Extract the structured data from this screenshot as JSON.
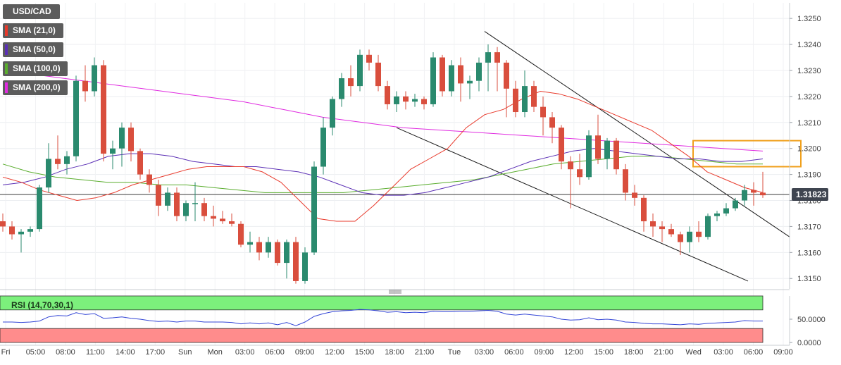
{
  "chart_data": {
    "type": "candlestick",
    "symbol": "USD/CAD",
    "legend": [
      {
        "label": "USD/CAD",
        "color": "#5c5c5c"
      },
      {
        "label": "SMA (21,0)",
        "color": "#e8392b"
      },
      {
        "label": "SMA (50,0)",
        "color": "#5b2fb5"
      },
      {
        "label": "SMA (100,0)",
        "color": "#5aad2e"
      },
      {
        "label": "SMA (200,0)",
        "color": "#e02be0"
      }
    ],
    "colors": {
      "up": "#2a8a6e",
      "down": "#d94e3d",
      "sma21": "#e8392b",
      "sma50": "#5b2fb5",
      "sma100": "#5aad2e",
      "sma200": "#e02be0",
      "rsi": "#3345d6",
      "overbought_fill": "#7cf07c",
      "oversold_fill": "#ff8c8c",
      "highlight_box": "#f0a01c"
    },
    "price_axis": {
      "ticks": [
        "1.3250",
        "1.3240",
        "1.3230",
        "1.3220",
        "1.3210",
        "1.3200",
        "1.3190",
        "1.3180",
        "1.3170",
        "1.3160",
        "1.3150"
      ],
      "ylim": [
        1.3146,
        1.3256
      ]
    },
    "last_price": {
      "value": 1.31823,
      "label": "1.31823"
    },
    "time_axis": {
      "labels": [
        "Fri",
        "05:00",
        "08:00",
        "11:00",
        "14:00",
        "17:00",
        "Sun",
        "Mon",
        "03:00",
        "06:00",
        "09:00",
        "12:00",
        "15:00",
        "18:00",
        "21:00",
        "Tue",
        "03:00",
        "06:00",
        "09:00",
        "12:00",
        "15:00",
        "18:00",
        "21:00",
        "Wed",
        "03:00",
        "06:00",
        "09:00"
      ]
    },
    "candles": [
      [
        1.3172,
        1.3175,
        1.3168,
        1.317
      ],
      [
        1.317,
        1.3172,
        1.3165,
        1.3167
      ],
      [
        1.3167,
        1.3169,
        1.316,
        1.3168
      ],
      [
        1.3168,
        1.317,
        1.3166,
        1.3169
      ],
      [
        1.3169,
        1.3186,
        1.3168,
        1.3185
      ],
      [
        1.3185,
        1.3202,
        1.3183,
        1.3196
      ],
      [
        1.3196,
        1.3205,
        1.3192,
        1.3194
      ],
      [
        1.3194,
        1.3199,
        1.319,
        1.3197
      ],
      [
        1.3197,
        1.3228,
        1.3195,
        1.3226
      ],
      [
        1.3226,
        1.3232,
        1.3218,
        1.3222
      ],
      [
        1.3222,
        1.3235,
        1.322,
        1.3232
      ],
      [
        1.3232,
        1.3234,
        1.3195,
        1.3198
      ],
      [
        1.3198,
        1.3203,
        1.3192,
        1.32
      ],
      [
        1.32,
        1.321,
        1.3193,
        1.3208
      ],
      [
        1.3208,
        1.321,
        1.3195,
        1.3199
      ],
      [
        1.3199,
        1.32,
        1.3188,
        1.319
      ],
      [
        1.319,
        1.3192,
        1.3183,
        1.3186
      ],
      [
        1.3186,
        1.3188,
        1.3174,
        1.3178
      ],
      [
        1.3178,
        1.3185,
        1.3176,
        1.3183
      ],
      [
        1.3183,
        1.3185,
        1.3172,
        1.3174
      ],
      [
        1.3174,
        1.318,
        1.3172,
        1.3179
      ],
      [
        1.3179,
        1.3187,
        1.3172,
        1.3179
      ],
      [
        1.3179,
        1.3181,
        1.3172,
        1.3174
      ],
      [
        1.3174,
        1.3178,
        1.317,
        1.3173
      ],
      [
        1.3173,
        1.3176,
        1.3171,
        1.3172
      ],
      [
        1.3172,
        1.3175,
        1.317,
        1.3171
      ],
      [
        1.3171,
        1.3172,
        1.3162,
        1.3163
      ],
      [
        1.3163,
        1.3168,
        1.316,
        1.3164
      ],
      [
        1.3164,
        1.3166,
        1.3157,
        1.316
      ],
      [
        1.316,
        1.3166,
        1.3158,
        1.3164
      ],
      [
        1.3164,
        1.3165,
        1.3155,
        1.3156
      ],
      [
        1.3156,
        1.3165,
        1.315,
        1.3164
      ],
      [
        1.3164,
        1.3166,
        1.3148,
        1.3149
      ],
      [
        1.3149,
        1.3162,
        1.3148,
        1.316
      ],
      [
        1.316,
        1.3195,
        1.3159,
        1.3193
      ],
      [
        1.3193,
        1.3212,
        1.319,
        1.3208
      ],
      [
        1.3208,
        1.322,
        1.3205,
        1.3219
      ],
      [
        1.3219,
        1.3229,
        1.3216,
        1.3227
      ],
      [
        1.3227,
        1.3232,
        1.322,
        1.3224
      ],
      [
        1.3224,
        1.3238,
        1.3222,
        1.3236
      ],
      [
        1.3236,
        1.3238,
        1.323,
        1.3233
      ],
      [
        1.3233,
        1.3236,
        1.3222,
        1.3224
      ],
      [
        1.3224,
        1.3226,
        1.3215,
        1.3217
      ],
      [
        1.3217,
        1.3222,
        1.3214,
        1.322
      ],
      [
        1.322,
        1.3222,
        1.3215,
        1.3218
      ],
      [
        1.3218,
        1.3221,
        1.3216,
        1.3219
      ],
      [
        1.3219,
        1.322,
        1.3215,
        1.3217
      ],
      [
        1.3217,
        1.3237,
        1.3216,
        1.3235
      ],
      [
        1.3235,
        1.3236,
        1.322,
        1.3222
      ],
      [
        1.3222,
        1.3234,
        1.322,
        1.3232
      ],
      [
        1.3232,
        1.3235,
        1.3218,
        1.3225
      ],
      [
        1.3225,
        1.3228,
        1.3219,
        1.3226
      ],
      [
        1.3226,
        1.3235,
        1.3222,
        1.3233
      ],
      [
        1.3233,
        1.324,
        1.3222,
        1.3237
      ],
      [
        1.3237,
        1.3239,
        1.3222,
        1.3233
      ],
      [
        1.3233,
        1.3234,
        1.3212,
        1.3223
      ],
      [
        1.3223,
        1.3226,
        1.3212,
        1.3214
      ],
      [
        1.3214,
        1.323,
        1.3212,
        1.3224
      ],
      [
        1.3224,
        1.3226,
        1.3214,
        1.3216
      ],
      [
        1.3216,
        1.322,
        1.3205,
        1.3212
      ],
      [
        1.3212,
        1.3214,
        1.3202,
        1.3208
      ],
      [
        1.3208,
        1.3209,
        1.3192,
        1.3195
      ],
      [
        1.3195,
        1.3197,
        1.3177,
        1.3192
      ],
      [
        1.3192,
        1.3198,
        1.3186,
        1.3189
      ],
      [
        1.3189,
        1.3207,
        1.3188,
        1.3205
      ],
      [
        1.3205,
        1.3213,
        1.3194,
        1.3196
      ],
      [
        1.3196,
        1.3204,
        1.3192,
        1.3203
      ],
      [
        1.3203,
        1.3204,
        1.319,
        1.3192
      ],
      [
        1.3192,
        1.3194,
        1.318,
        1.3183
      ],
      [
        1.3183,
        1.3186,
        1.3178,
        1.3181
      ],
      [
        1.3181,
        1.3182,
        1.3168,
        1.3172
      ],
      [
        1.3172,
        1.3175,
        1.3166,
        1.317
      ],
      [
        1.317,
        1.3172,
        1.3164,
        1.3169
      ],
      [
        1.3169,
        1.3171,
        1.3166,
        1.3167
      ],
      [
        1.3167,
        1.3168,
        1.3159,
        1.3164
      ],
      [
        1.3164,
        1.317,
        1.316,
        1.3168
      ],
      [
        1.3168,
        1.3172,
        1.3164,
        1.3166
      ],
      [
        1.3166,
        1.3175,
        1.3165,
        1.3174
      ],
      [
        1.3174,
        1.3176,
        1.3172,
        1.3175
      ],
      [
        1.3175,
        1.3179,
        1.3174,
        1.3177
      ],
      [
        1.3177,
        1.3181,
        1.3176,
        1.318
      ],
      [
        1.318,
        1.3186,
        1.3178,
        1.3184
      ],
      [
        1.3184,
        1.3187,
        1.3178,
        1.3183
      ],
      [
        1.3183,
        1.3191,
        1.3181,
        1.3182
      ]
    ],
    "sma21": [
      1.3189,
      1.3187,
      1.3184,
      1.3182,
      1.318,
      1.3181,
      1.3183,
      1.3186,
      1.3188,
      1.319,
      1.3192,
      1.3193,
      1.3193,
      1.3193,
      1.3191,
      1.3187,
      1.318,
      1.3173,
      1.3172,
      1.3172,
      1.3178,
      1.3185,
      1.3192,
      1.3196,
      1.32,
      1.3208,
      1.3213,
      1.3215,
      1.3219,
      1.3222,
      1.3221,
      1.3219,
      1.3216,
      1.3213,
      1.321,
      1.3207,
      1.3202,
      1.3197,
      1.3191,
      1.3188,
      1.3185,
      1.3183
    ],
    "sma50": [
      1.3186,
      1.3187,
      1.3189,
      1.3192,
      1.3194,
      1.3197,
      1.3198,
      1.3198,
      1.3197,
      1.3195,
      1.3194,
      1.3193,
      1.3193,
      1.3192,
      1.3191,
      1.3189,
      1.3186,
      1.3183,
      1.3182,
      1.3182,
      1.3183,
      1.3185,
      1.3187,
      1.3189,
      1.3192,
      1.3195,
      1.3197,
      1.3199,
      1.32,
      1.3199,
      1.3198,
      1.3197,
      1.3196,
      1.3196,
      1.3195,
      1.3195,
      1.3196
    ],
    "sma100": [
      1.3194,
      1.3191,
      1.3189,
      1.3188,
      1.3187,
      1.3187,
      1.3186,
      1.3186,
      1.3185,
      1.3184,
      1.3183,
      1.3183,
      1.3183,
      1.3183,
      1.3184,
      1.3185,
      1.3186,
      1.3187,
      1.3188,
      1.319,
      1.3192,
      1.3194,
      1.3195,
      1.3196,
      1.3197,
      1.3197,
      1.3196,
      1.3195,
      1.3194,
      1.3194
    ],
    "sma200": [
      1.323,
      1.3228,
      1.3226,
      1.3224,
      1.3222,
      1.322,
      1.3218,
      1.3215,
      1.3212,
      1.321,
      1.3208,
      1.3207,
      1.3206,
      1.3205,
      1.3204,
      1.3203,
      1.3202,
      1.3201,
      1.32,
      1.3199
    ],
    "trendlines": [
      {
        "from": [
          0,
          1.3245
        ],
        "to": [
          1,
          1.3166
        ]
      },
      {
        "from": [
          0,
          1.3208
        ],
        "to": [
          1,
          1.3149
        ]
      }
    ],
    "rsi": {
      "label": "RSI (14,70,30,1)",
      "axis_ticks": [
        "50.0000",
        "0.0000"
      ],
      "ylim": [
        0,
        100
      ],
      "overbought": 70,
      "oversold": 30,
      "values": [
        44,
        44,
        43,
        44,
        46,
        55,
        58,
        57,
        64,
        60,
        62,
        52,
        53,
        55,
        52,
        50,
        47,
        45,
        46,
        44,
        46,
        46,
        44,
        44,
        44,
        43,
        40,
        42,
        40,
        42,
        38,
        43,
        36,
        44,
        56,
        62,
        66,
        68,
        69,
        71,
        70,
        68,
        65,
        66,
        64,
        65,
        64,
        67,
        66,
        66,
        67,
        67,
        68,
        69,
        67,
        61,
        59,
        61,
        59,
        57,
        55,
        50,
        48,
        49,
        53,
        49,
        50,
        48,
        44,
        43,
        41,
        40,
        40,
        39,
        38,
        40,
        39,
        41,
        42,
        43,
        44,
        47,
        46,
        46
      ]
    }
  }
}
